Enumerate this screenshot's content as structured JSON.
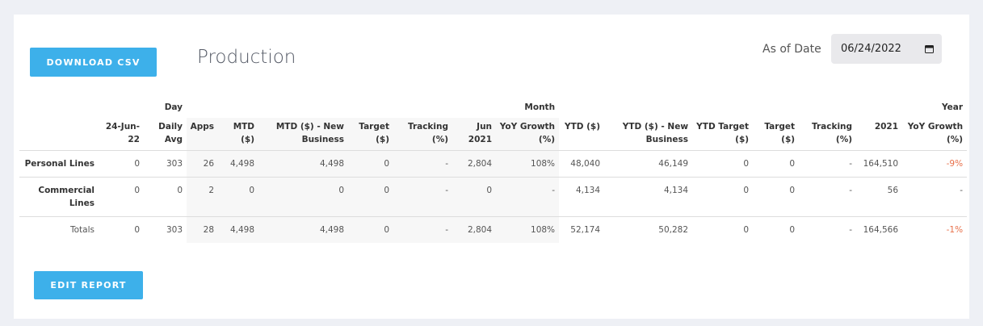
{
  "header": {
    "button": "DOWNLOAD CSV",
    "title": "Production",
    "date_label": "As of Date",
    "date_value": "06/24/2022"
  },
  "table": {
    "groups": [
      "Day",
      "Month",
      "Year"
    ],
    "columns": [
      "24-Jun-22",
      "Daily Avg",
      "Apps",
      "MTD ($)",
      "MTD ($) - New Business",
      "Target ($)",
      "Tracking (%)",
      "Jun 2021",
      "YoY Growth (%)",
      "YTD ($)",
      "YTD ($) - New Business",
      "YTD Target ($)",
      "Target ($)",
      "Tracking (%)",
      "2021",
      "YoY Growth (%)"
    ],
    "rows": [
      {
        "label": "Personal Lines",
        "cells": [
          "0",
          "303",
          "26",
          "4,498",
          "4,498",
          "0",
          "-",
          "2,804",
          "108%",
          "48,040",
          "46,149",
          "0",
          "0",
          "-",
          "164,510",
          "-9%"
        ]
      },
      {
        "label": "Commercial Lines",
        "cells": [
          "0",
          "0",
          "2",
          "0",
          "0",
          "0",
          "-",
          "0",
          "-",
          "4,134",
          "4,134",
          "0",
          "0",
          "-",
          "56",
          "-"
        ]
      },
      {
        "label": "Totals",
        "cells": [
          "0",
          "303",
          "28",
          "4,498",
          "4,498",
          "0",
          "-",
          "2,804",
          "108%",
          "52,174",
          "50,282",
          "0",
          "0",
          "-",
          "164,566",
          "-1%"
        ]
      }
    ]
  },
  "footer": {
    "button": "EDIT REPORT"
  }
}
